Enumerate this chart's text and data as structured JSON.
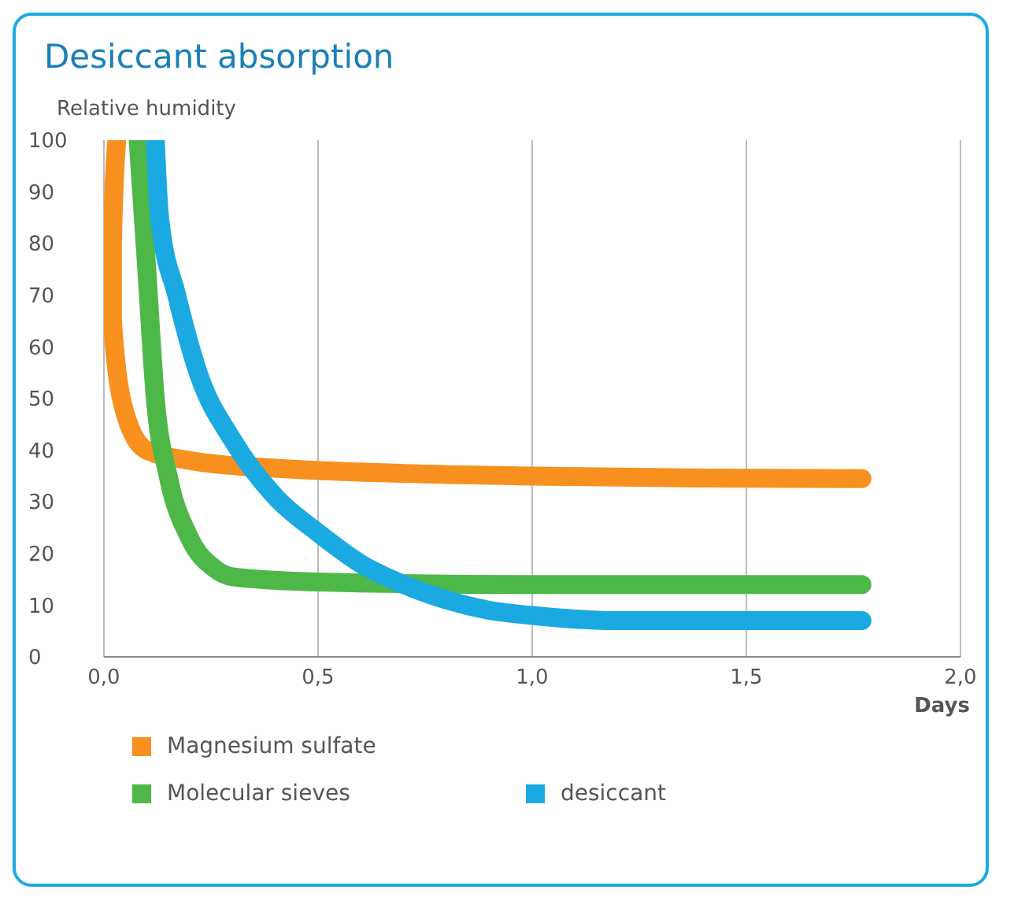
{
  "chart_data": {
    "type": "line",
    "title": "Desiccant absorption",
    "ylabel": "Relative humidity",
    "xlabel": "Days",
    "xlim": [
      0,
      2
    ],
    "xticks": [
      {
        "value": 0,
        "label": "0,0"
      },
      {
        "value": 0.5,
        "label": "0,5"
      },
      {
        "value": 1,
        "label": "1,0"
      },
      {
        "value": 1.5,
        "label": "1,5"
      },
      {
        "value": 2,
        "label": "2,0"
      }
    ],
    "ylim": [
      0,
      100
    ],
    "yticks": [
      0,
      10,
      20,
      30,
      40,
      50,
      60,
      70,
      80,
      90,
      100
    ],
    "grid": "x",
    "legend": "bottom",
    "marker": "none",
    "line_style": "solid",
    "series": [
      {
        "name": "Magnesium sulfate",
        "color": "#f7901e",
        "x": [
          0.03,
          0.02,
          0.02,
          0.05,
          0.1,
          0.2,
          0.4,
          0.7,
          1.0,
          1.4,
          1.77
        ],
        "values": [
          100,
          80,
          65,
          47,
          40,
          38,
          36.5,
          35.5,
          35,
          34.6,
          34.5
        ]
      },
      {
        "name": "Molecular sieves",
        "color": "#4db848",
        "x": [
          0.08,
          0.1,
          0.12,
          0.15,
          0.2,
          0.26,
          0.3,
          0.5,
          1.0,
          1.77
        ],
        "values": [
          100,
          75,
          50,
          35,
          23,
          17,
          15.5,
          14.5,
          14,
          14
        ]
      },
      {
        "name": "desiccant",
        "color": "#1ba9e1",
        "x": [
          0.12,
          0.13,
          0.17,
          0.22,
          0.3,
          0.4,
          0.5,
          0.6,
          0.7,
          0.8,
          0.9,
          1.0,
          1.2,
          1.5,
          1.77
        ],
        "values": [
          100,
          85,
          70,
          55,
          42,
          31,
          24,
          18,
          14,
          11,
          9,
          8,
          7,
          7,
          7
        ]
      }
    ]
  }
}
